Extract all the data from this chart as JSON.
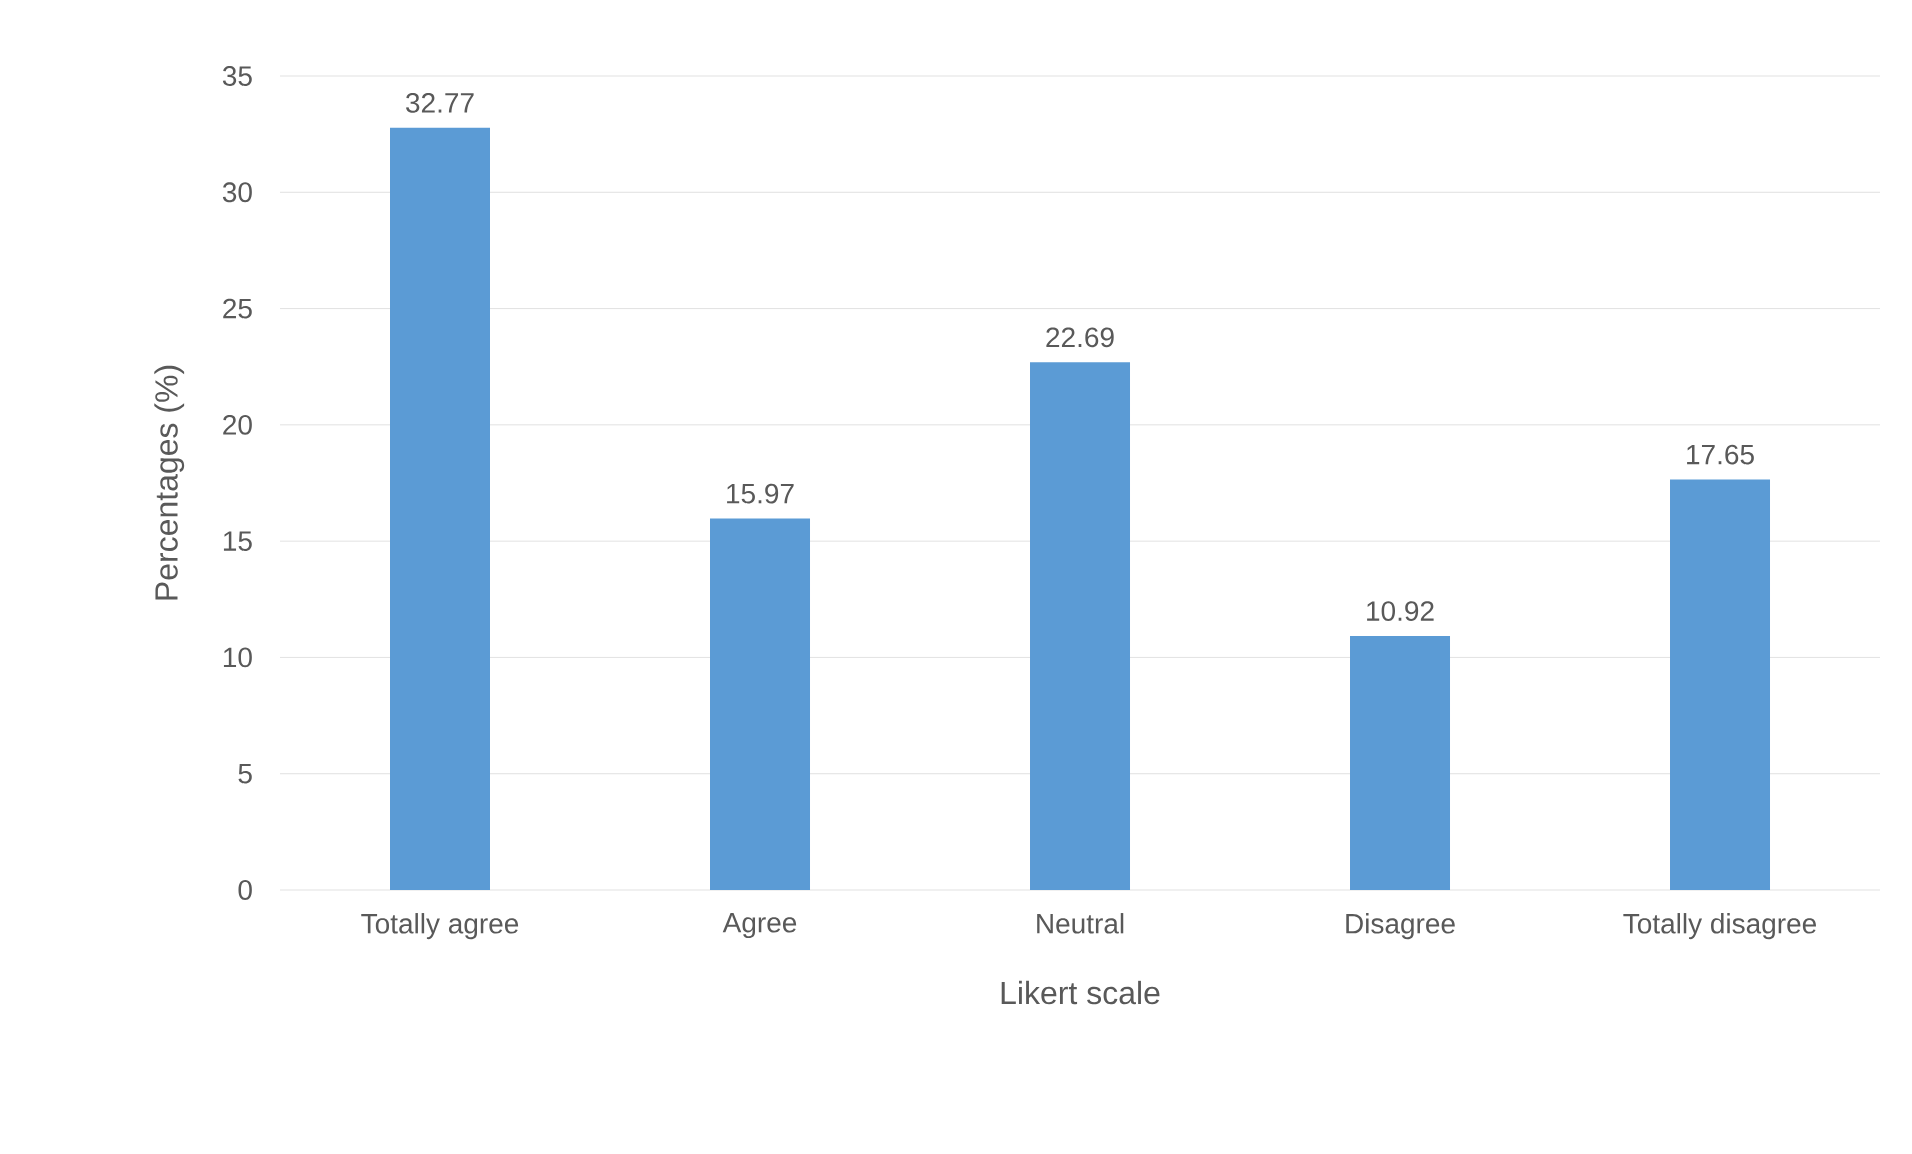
{
  "chart_data": {
    "type": "bar",
    "xlabel": "Likert scale",
    "ylabel": "Percentages (%)",
    "categories": [
      "Totally agree",
      "Agree",
      "Neutral",
      "Disagree",
      "Totally disagree"
    ],
    "values": [
      32.77,
      15.97,
      22.69,
      10.92,
      17.65
    ],
    "color": "#5b9bd5",
    "ylim": [
      0,
      35
    ],
    "yticks": [
      0,
      5,
      10,
      15,
      20,
      25,
      30,
      35
    ],
    "grid": "y",
    "data_labels": true
  }
}
